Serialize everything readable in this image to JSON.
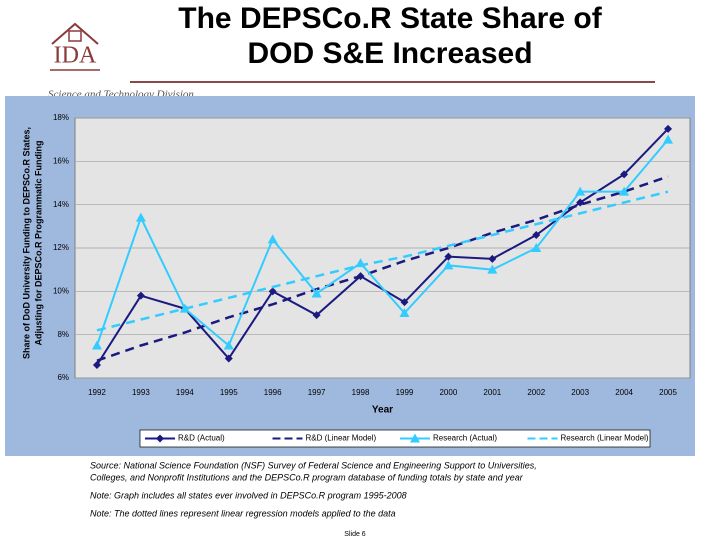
{
  "slide": {
    "title_line1": "The DEPSCo.R State Share of",
    "title_line2": "DOD S&E Increased",
    "logo": "IDA",
    "division": "Science and Technology Division",
    "source": [
      "Source: National Science Foundation (NSF) Survey of Federal Science and Engineering Support to Universities,",
      "Colleges, and Nonprofit Institutions and the DEPSCo.R program database of funding totals by state and year"
    ],
    "note1": "Note: Graph includes all states ever involved in DEPSCo.R program 1995-2008",
    "note2": "Note: The dotted lines represent linear regression models applied to the data",
    "slide_number": "Slide 6"
  },
  "chart_data": {
    "type": "line",
    "y_label": [
      "Share of DoD University Funding to DEPSCo.R States,",
      "Adjusting for DEPSCo.R Programmatic Funding"
    ],
    "x_label": "Year",
    "categories": [
      "1992",
      "1993",
      "1994",
      "1995",
      "1996",
      "1997",
      "1998",
      "1999",
      "2000",
      "2001",
      "2002",
      "2003",
      "2004",
      "2005"
    ],
    "ylim": [
      6,
      18
    ],
    "yticks": [
      {
        "value": 6,
        "label": "6%"
      },
      {
        "value": 8,
        "label": "8%"
      },
      {
        "value": 10,
        "label": "10%"
      },
      {
        "value": 12,
        "label": "12%"
      },
      {
        "value": 14,
        "label": "14%"
      },
      {
        "value": 16,
        "label": "16%"
      },
      {
        "value": 18,
        "label": "18%"
      }
    ],
    "grid": true,
    "legend": "bottom",
    "series": [
      {
        "name": "R&D (Actual)",
        "color": "#1a1a80",
        "dashed": false,
        "marker": "diamond",
        "values": [
          6.6,
          9.8,
          9.2,
          6.9,
          10.0,
          8.9,
          10.7,
          9.5,
          11.6,
          11.5,
          12.6,
          14.1,
          15.4,
          17.5
        ]
      },
      {
        "name": "R&D (Linear Model)",
        "color": "#1a1a80",
        "dashed": true,
        "marker": "none",
        "values": [
          6.8,
          7.5,
          8.1,
          8.8,
          9.4,
          10.1,
          10.7,
          11.4,
          12.0,
          12.7,
          13.3,
          14.0,
          14.6,
          15.3
        ]
      },
      {
        "name": "Research (Actual)",
        "color": "#33ccff",
        "dashed": false,
        "marker": "triangle",
        "values": [
          7.5,
          13.4,
          9.2,
          7.5,
          12.4,
          9.9,
          11.3,
          9.0,
          11.2,
          11.0,
          12.0,
          14.6,
          14.6,
          17.0
        ]
      },
      {
        "name": "Research (Linear Model)",
        "color": "#33ccff",
        "dashed": true,
        "marker": "none",
        "values": [
          8.2,
          8.7,
          9.2,
          9.7,
          10.2,
          10.7,
          11.2,
          11.6,
          12.1,
          12.6,
          13.1,
          13.6,
          14.1,
          14.6
        ]
      }
    ]
  }
}
